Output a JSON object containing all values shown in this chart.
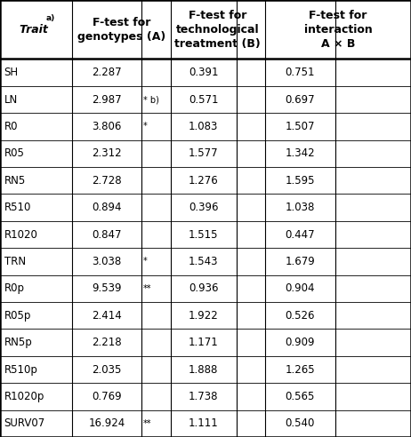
{
  "col_headers": [
    "Trait a)",
    "F-test for\ngenotypes (A)",
    "F-test for\ntechnological\ntreatment (B)",
    "F-test for\ninteraction\nA × B"
  ],
  "rows": [
    [
      "SH",
      "2.287",
      "",
      "0.391",
      "",
      "0.751",
      ""
    ],
    [
      "LN",
      "2.987",
      "* b)",
      "0.571",
      "",
      "0.697",
      ""
    ],
    [
      "R0",
      "3.806",
      "*",
      "1.083",
      "",
      "1.507",
      ""
    ],
    [
      "R05",
      "2.312",
      "",
      "1.577",
      "",
      "1.342",
      ""
    ],
    [
      "RN5",
      "2.728",
      "",
      "1.276",
      "",
      "1.595",
      ""
    ],
    [
      "R510",
      "0.894",
      "",
      "0.396",
      "",
      "1.038",
      ""
    ],
    [
      "R1020",
      "0.847",
      "",
      "1.515",
      "",
      "0.447",
      ""
    ],
    [
      "TRN",
      "3.038",
      "*",
      "1.543",
      "",
      "1.679",
      ""
    ],
    [
      "R0p",
      "9.539",
      "**",
      "0.936",
      "",
      "0.904",
      ""
    ],
    [
      "R05p",
      "2.414",
      "",
      "1.922",
      "",
      "0.526",
      ""
    ],
    [
      "RN5p",
      "2.218",
      "",
      "1.171",
      "",
      "0.909",
      ""
    ],
    [
      "R510p",
      "2.035",
      "",
      "1.888",
      "",
      "1.265",
      ""
    ],
    [
      "R1020p",
      "0.769",
      "",
      "1.738",
      "",
      "0.565",
      ""
    ],
    [
      "SURV07",
      "16.924",
      "**",
      "1.111",
      "",
      "0.540",
      ""
    ]
  ],
  "bg_color": "#ffffff",
  "line_color": "#000000",
  "text_color": "#000000",
  "font_size": 8.5,
  "header_font_size": 9.0,
  "fig_width": 4.62,
  "fig_height": 4.92,
  "dpi": 100
}
